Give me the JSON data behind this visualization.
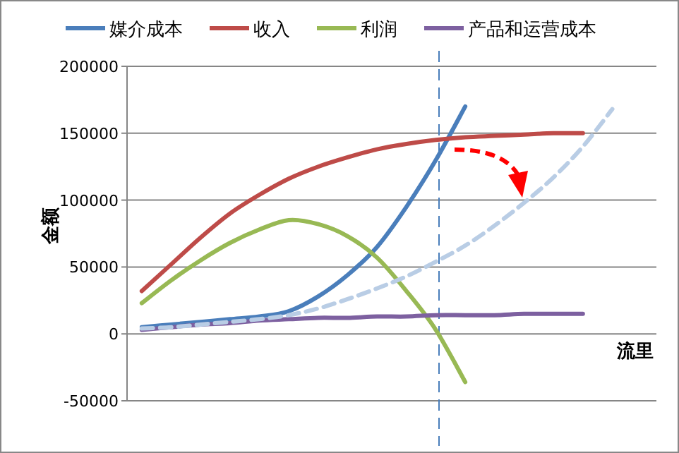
{
  "chart_data": {
    "type": "line",
    "xlabel": "流里",
    "ylabel": "金额",
    "categories": [
      null,
      null,
      null,
      null,
      null,
      null,
      null,
      null,
      null,
      null,
      null,
      null,
      null,
      null,
      null,
      null,
      null,
      null
    ],
    "ylim": [
      -50000,
      200000
    ],
    "yticks": [
      -50000,
      0,
      50000,
      100000,
      150000,
      200000
    ],
    "grid": "y",
    "legend": "top",
    "marker": "none",
    "series": [
      {
        "name": "媒介成本",
        "color": "#4a7ebb",
        "values": [
          5000,
          7000,
          9000,
          11000,
          13000,
          17000,
          28000,
          44000,
          65000,
          95000,
          130000,
          170000,
          null,
          null,
          null,
          null,
          null,
          null
        ]
      },
      {
        "name": "收入",
        "color": "#be4b48",
        "values": [
          32000,
          52000,
          72000,
          90000,
          104000,
          116000,
          125000,
          132000,
          138000,
          142000,
          145000,
          147000,
          148000,
          149000,
          150000,
          150000,
          null,
          null
        ]
      },
      {
        "name": "利润",
        "color": "#98b954",
        "values": [
          23000,
          40000,
          55000,
          68000,
          78000,
          85000,
          82000,
          73000,
          57000,
          32000,
          3000,
          -36000,
          null,
          null,
          null,
          null,
          null,
          null
        ]
      },
      {
        "name": "产品和运营成本",
        "color": "#7d60a0",
        "values": [
          3000,
          5000,
          7000,
          8000,
          10000,
          11000,
          12000,
          12000,
          13000,
          13000,
          14000,
          14000,
          14000,
          15000,
          15000,
          15000,
          null,
          null
        ]
      },
      {
        "color": "#b9cde5",
        "line_style": "dashed",
        "values": [
          4000,
          5000,
          7000,
          9000,
          11000,
          14000,
          19000,
          26000,
          34000,
          43000,
          54000,
          66000,
          81000,
          98000,
          117000,
          140000,
          168000,
          null
        ]
      }
    ]
  }
}
